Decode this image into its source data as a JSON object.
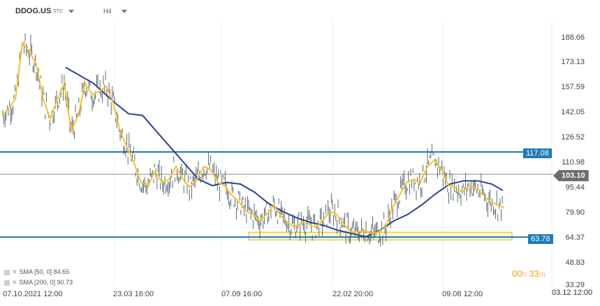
{
  "header": {
    "symbol": "DDOG.US",
    "symbol_suffix": "STC",
    "timeframe": "H4"
  },
  "y_axis": {
    "labels": [
      "188.66",
      "173.13",
      "157.59",
      "142.05",
      "126.52",
      "110.98",
      "95.44",
      "79.90",
      "64.37",
      "48.83",
      "33.29"
    ]
  },
  "x_axis": {
    "labels": [
      "07.10.2021 12:00",
      "23.03 16:00",
      "07.09 16:00",
      "22.02 20:00",
      "09.08 12:00",
      "03.12 12:00"
    ]
  },
  "price_tags": {
    "upper_level": "117.08",
    "lower_level": "63.78",
    "current": "103.10"
  },
  "legend": {
    "sma1": "SMA [50, 0] 84.65",
    "sma2": "SMA [200, 0] 90.73"
  },
  "timer": {
    "hours": "00",
    "h_unit": "h",
    "minutes": "33",
    "m_unit": "m"
  },
  "colors": {
    "price": "#4a5a66",
    "sma_fast": "#f2c230",
    "sma_slow": "#2d3f99",
    "level": "#1f7ab8",
    "zone_fill": "#fbf4c8",
    "zone_border": "#e2c23a"
  },
  "chart_data": {
    "type": "line",
    "ylim": [
      33.29,
      196
    ],
    "levels": [
      117.08,
      63.78
    ],
    "current_price": 103.1,
    "zone": [
      62.0,
      66.8
    ],
    "series": [
      {
        "name": "SMA [50, 0]",
        "x": [
          0,
          18,
          28,
          38,
          48,
          58,
          68,
          78,
          88,
          98,
          108,
          118,
          128,
          138,
          148,
          158,
          168,
          178,
          188,
          198,
          208,
          218,
          228,
          238,
          248,
          258,
          268,
          278,
          288,
          298,
          308,
          318,
          328,
          338,
          348,
          358,
          368,
          378,
          388,
          398,
          408,
          418,
          428,
          438,
          448,
          458,
          468,
          478,
          488,
          498,
          508,
          518,
          528,
          538,
          548,
          558,
          568,
          578,
          588,
          598,
          608,
          618,
          628,
          638,
          648,
          658,
          668,
          678,
          688,
          698,
          708,
          718
        ],
        "y": [
          140,
          150,
          185,
          180,
          172,
          150,
          138,
          150,
          160,
          130,
          140,
          160,
          153,
          155,
          158,
          148,
          130,
          120,
          110,
          98,
          96,
          105,
          98,
          100,
          108,
          100,
          95,
          100,
          108,
          106,
          98,
          96,
          90,
          86,
          80,
          78,
          74,
          78,
          84,
          77,
          73,
          70,
          73,
          72,
          70,
          74,
          80,
          78,
          72,
          67,
          67,
          68,
          66,
          67,
          70,
          82,
          90,
          98,
          100,
          98,
          108,
          112,
          106,
          96,
          95,
          92,
          96,
          94,
          90,
          86,
          84,
          82
        ]
      },
      {
        "name": "SMA [200, 0]",
        "x": [
          90,
          130,
          160,
          180,
          200,
          220,
          240,
          260,
          280,
          300,
          320,
          340,
          360,
          380,
          400,
          420,
          440,
          460,
          480,
          500,
          520,
          540,
          560,
          580,
          600,
          620,
          640,
          660,
          680,
          700,
          716
        ],
        "y": [
          170,
          160,
          148,
          141,
          140,
          130,
          120,
          110,
          100,
          96,
          98,
          97,
          92,
          85,
          80,
          76,
          73,
          71,
          68,
          66,
          64,
          68,
          74,
          78,
          84,
          91,
          97,
          99,
          99,
          97,
          93
        ]
      }
    ]
  }
}
